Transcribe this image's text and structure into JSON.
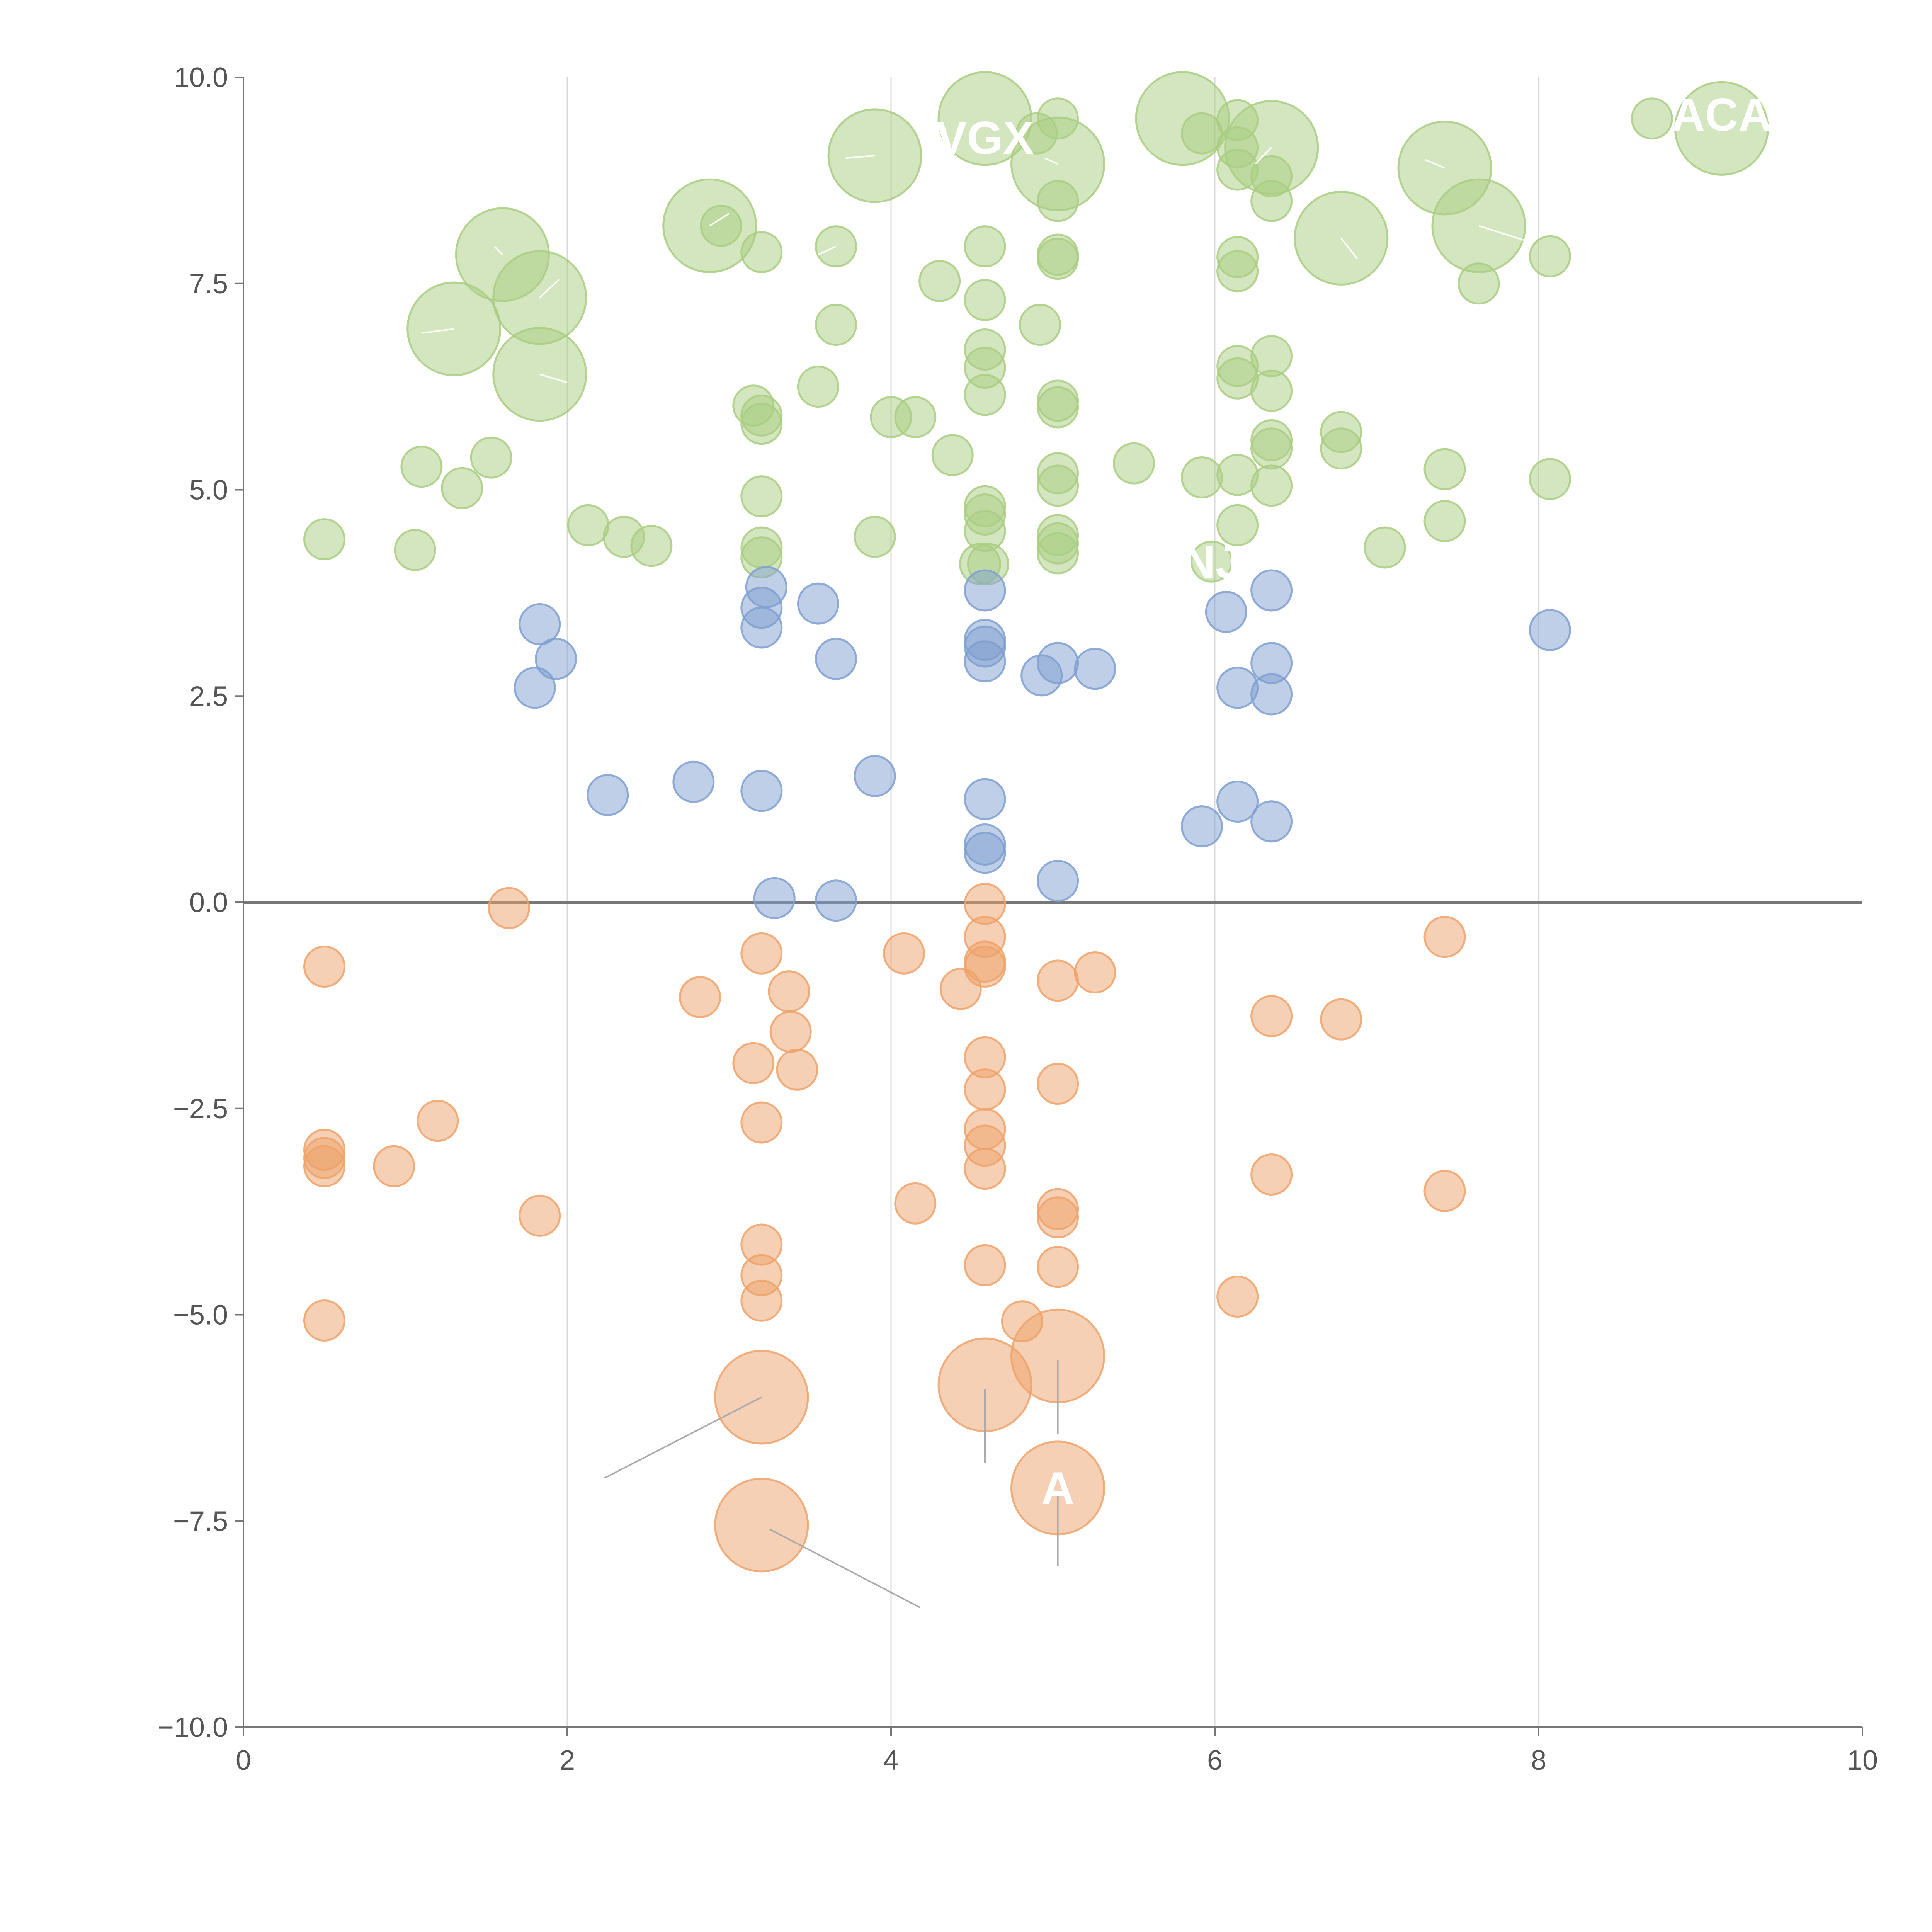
{
  "colors": {
    "positive_high": "#a9cd81",
    "positive_low": "#7f9fd0",
    "negative": "#eea26a",
    "axis": "#777777",
    "grid": "#d8d8d8",
    "leader_dark": "#aaaaaa",
    "leader_light": "#ffffff"
  },
  "chart_data": {
    "type": "scatter",
    "title": "",
    "xlabel": "",
    "ylabel": "",
    "xlim": [
      0,
      10
    ],
    "ylim": [
      -10,
      10
    ],
    "x_ticks": [
      "0",
      "2",
      "4",
      "6",
      "8",
      "10"
    ],
    "y_ticks": [
      "−10.0",
      "−7.5",
      "−5.0",
      "−2.5",
      "0.0",
      "2.5",
      "5.0",
      "7.5",
      "10.0"
    ],
    "x_tick_values": [
      0,
      2,
      4,
      6,
      8,
      10
    ],
    "y_tick_values": [
      -10,
      -7.5,
      -5,
      -2.5,
      0,
      2.5,
      5,
      7.5,
      10
    ],
    "vertical_grid": [
      2,
      4,
      6,
      8
    ],
    "zero_line": 0,
    "series": [
      {
        "name": "high",
        "color_key": "positive_high",
        "points": [
          [
            0.5,
            4.4,
            1
          ],
          [
            1.06,
            4.27,
            1
          ],
          [
            1.1,
            5.28,
            1
          ],
          [
            1.35,
            5.02,
            1
          ],
          [
            1.53,
            5.39,
            1
          ],
          [
            1.3,
            6.95,
            2.5
          ],
          [
            1.6,
            7.85,
            2.5
          ],
          [
            1.83,
            7.33,
            2.5
          ],
          [
            1.83,
            6.4,
            2.5
          ],
          [
            2.13,
            4.57,
            1
          ],
          [
            2.35,
            4.43,
            1
          ],
          [
            2.52,
            4.32,
            1
          ],
          [
            2.88,
            8.2,
            2.5
          ],
          [
            2.95,
            8.2,
            1
          ],
          [
            3.15,
            6.02,
            1
          ],
          [
            3.2,
            5.8,
            1
          ],
          [
            3.2,
            5.9,
            1
          ],
          [
            3.2,
            4.92,
            1
          ],
          [
            3.2,
            4.3,
            1
          ],
          [
            3.2,
            4.18,
            1
          ],
          [
            3.2,
            7.88,
            1
          ],
          [
            3.55,
            6.25,
            1
          ],
          [
            3.66,
            7.0,
            1
          ],
          [
            3.66,
            7.95,
            1
          ],
          [
            3.9,
            9.05,
            2.5
          ],
          [
            3.9,
            4.43,
            1
          ],
          [
            4.0,
            5.88,
            1
          ],
          [
            4.15,
            5.88,
            1
          ],
          [
            4.3,
            7.53,
            1
          ],
          [
            4.38,
            5.42,
            1
          ],
          [
            4.58,
            9.5,
            2.5
          ],
          [
            4.58,
            7.95,
            1
          ],
          [
            4.58,
            7.3,
            1
          ],
          [
            4.58,
            6.7,
            1
          ],
          [
            4.58,
            6.48,
            1
          ],
          [
            4.58,
            6.15,
            1
          ],
          [
            4.58,
            4.8,
            1
          ],
          [
            4.58,
            4.7,
            1
          ],
          [
            4.58,
            4.5,
            1
          ],
          [
            4.55,
            4.1,
            1
          ],
          [
            4.6,
            4.1,
            1
          ],
          [
            4.9,
            9.32,
            1
          ],
          [
            4.92,
            7.0,
            1
          ],
          [
            5.03,
            9.5,
            1
          ],
          [
            5.03,
            8.95,
            2.5
          ],
          [
            5.03,
            8.5,
            1
          ],
          [
            5.03,
            7.85,
            1
          ],
          [
            5.03,
            7.8,
            1
          ],
          [
            5.03,
            6.0,
            1
          ],
          [
            5.03,
            6.08,
            1
          ],
          [
            5.03,
            5.2,
            1
          ],
          [
            5.03,
            5.05,
            1
          ],
          [
            5.03,
            4.45,
            1
          ],
          [
            5.03,
            4.35,
            1
          ],
          [
            5.03,
            4.23,
            1
          ],
          [
            5.5,
            5.32,
            1
          ],
          [
            5.8,
            9.5,
            2.5
          ],
          [
            5.92,
            9.32,
            1
          ],
          [
            5.92,
            5.15,
            1
          ],
          [
            5.98,
            4.13,
            1
          ],
          [
            6.14,
            9.48,
            1
          ],
          [
            6.14,
            9.15,
            1
          ],
          [
            6.14,
            8.88,
            1
          ],
          [
            6.14,
            7.82,
            1
          ],
          [
            6.14,
            7.65,
            1
          ],
          [
            6.14,
            6.5,
            1
          ],
          [
            6.14,
            6.35,
            1
          ],
          [
            6.14,
            5.18,
            1
          ],
          [
            6.14,
            4.57,
            1
          ],
          [
            6.35,
            9.15,
            2.5
          ],
          [
            6.35,
            8.8,
            1
          ],
          [
            6.35,
            8.5,
            1
          ],
          [
            6.35,
            6.62,
            1
          ],
          [
            6.35,
            6.2,
            1
          ],
          [
            6.35,
            5.6,
            1
          ],
          [
            6.35,
            5.5,
            1
          ],
          [
            6.35,
            5.05,
            1
          ],
          [
            6.78,
            8.05,
            2.5
          ],
          [
            6.78,
            5.7,
            1
          ],
          [
            6.78,
            5.5,
            1
          ],
          [
            7.05,
            4.3,
            1
          ],
          [
            7.42,
            8.9,
            2.5
          ],
          [
            7.42,
            5.25,
            1
          ],
          [
            7.42,
            4.62,
            1
          ],
          [
            7.63,
            8.2,
            2.5
          ],
          [
            7.63,
            7.5,
            1
          ],
          [
            8.07,
            7.83,
            1
          ],
          [
            8.07,
            5.13,
            1
          ],
          [
            8.7,
            9.5,
            1
          ],
          [
            9.13,
            9.38,
            2.5
          ]
        ]
      },
      {
        "name": "low",
        "color_key": "positive_low",
        "points": [
          [
            1.83,
            3.37,
            1
          ],
          [
            1.8,
            2.6,
            1
          ],
          [
            1.93,
            2.95,
            1
          ],
          [
            2.25,
            1.3,
            1
          ],
          [
            2.78,
            1.46,
            1
          ],
          [
            3.2,
            3.57,
            1
          ],
          [
            3.2,
            3.33,
            1
          ],
          [
            3.23,
            3.82,
            1
          ],
          [
            3.2,
            1.35,
            1
          ],
          [
            3.28,
            0.05,
            1
          ],
          [
            3.55,
            3.62,
            1
          ],
          [
            3.66,
            2.95,
            1
          ],
          [
            3.66,
            0.02,
            1
          ],
          [
            3.9,
            1.53,
            1
          ],
          [
            4.58,
            3.78,
            1
          ],
          [
            4.58,
            3.18,
            1
          ],
          [
            4.58,
            3.1,
            1
          ],
          [
            4.58,
            2.92,
            1
          ],
          [
            4.58,
            1.25,
            1
          ],
          [
            4.58,
            0.7,
            1
          ],
          [
            4.58,
            0.6,
            1
          ],
          [
            4.93,
            2.75,
            1
          ],
          [
            5.03,
            2.9,
            1
          ],
          [
            5.03,
            0.26,
            1
          ],
          [
            5.26,
            2.83,
            1
          ],
          [
            5.92,
            0.92,
            1
          ],
          [
            6.07,
            3.52,
            1
          ],
          [
            6.14,
            2.6,
            1
          ],
          [
            6.14,
            1.22,
            1
          ],
          [
            6.35,
            3.78,
            1
          ],
          [
            6.35,
            2.9,
            1
          ],
          [
            6.35,
            2.52,
            1
          ],
          [
            6.35,
            0.98,
            1
          ],
          [
            8.07,
            3.3,
            1
          ]
        ]
      },
      {
        "name": "negative",
        "color_key": "negative",
        "points": [
          [
            0.5,
            -0.78,
            1
          ],
          [
            0.5,
            -3.0,
            1
          ],
          [
            0.5,
            -3.1,
            1
          ],
          [
            0.5,
            -3.2,
            1
          ],
          [
            0.5,
            -5.07,
            1
          ],
          [
            0.93,
            -3.2,
            1
          ],
          [
            1.2,
            -2.65,
            1
          ],
          [
            1.64,
            -0.07,
            1
          ],
          [
            1.83,
            -3.8,
            1
          ],
          [
            2.82,
            -1.15,
            1
          ],
          [
            3.15,
            -1.95,
            1
          ],
          [
            3.2,
            -0.62,
            1
          ],
          [
            3.2,
            -2.67,
            1
          ],
          [
            3.2,
            -4.15,
            1
          ],
          [
            3.2,
            -4.52,
            1
          ],
          [
            3.2,
            -4.83,
            1
          ],
          [
            3.2,
            -6.0,
            2.5
          ],
          [
            3.2,
            -7.55,
            2.5
          ],
          [
            3.37,
            -1.08,
            1
          ],
          [
            3.38,
            -1.57,
            1
          ],
          [
            3.42,
            -2.03,
            1
          ],
          [
            4.08,
            -0.62,
            1
          ],
          [
            4.15,
            -3.65,
            1
          ],
          [
            4.43,
            -1.05,
            1
          ],
          [
            4.58,
            -0.02,
            1
          ],
          [
            4.58,
            -0.42,
            1
          ],
          [
            4.58,
            -0.72,
            1
          ],
          [
            4.58,
            -0.78,
            1
          ],
          [
            4.58,
            -1.88,
            1
          ],
          [
            4.58,
            -2.27,
            1
          ],
          [
            4.58,
            -2.75,
            1
          ],
          [
            4.58,
            -2.95,
            1
          ],
          [
            4.58,
            -3.23,
            1
          ],
          [
            4.58,
            -4.4,
            1
          ],
          [
            4.58,
            -5.85,
            2.5
          ],
          [
            4.81,
            -5.08,
            1
          ],
          [
            5.03,
            -0.95,
            1
          ],
          [
            5.03,
            -2.2,
            1
          ],
          [
            5.03,
            -3.72,
            1
          ],
          [
            5.03,
            -3.82,
            1
          ],
          [
            5.03,
            -4.42,
            1
          ],
          [
            5.03,
            -5.5,
            2.5
          ],
          [
            5.03,
            -7.1,
            2.5
          ],
          [
            5.26,
            -0.85,
            1
          ],
          [
            6.14,
            -4.78,
            1
          ],
          [
            6.35,
            -1.38,
            1
          ],
          [
            6.35,
            -3.3,
            1
          ],
          [
            6.78,
            -1.42,
            1
          ],
          [
            7.42,
            -0.42,
            1
          ],
          [
            7.42,
            -3.5,
            1
          ]
        ]
      }
    ],
    "leader_lines": [
      {
        "color_key": "leader_dark",
        "from": [
          3.2,
          -6.0
        ],
        "to": [
          2.23,
          -6.98
        ]
      },
      {
        "color_key": "leader_dark",
        "from": [
          3.25,
          -7.6
        ],
        "to": [
          4.18,
          -8.55
        ]
      },
      {
        "color_key": "leader_dark",
        "from": [
          4.58,
          -5.9
        ],
        "to": [
          4.58,
          -6.8
        ]
      },
      {
        "color_key": "leader_dark",
        "from": [
          5.03,
          -5.55
        ],
        "to": [
          5.03,
          -6.45
        ]
      },
      {
        "color_key": "leader_dark",
        "from": [
          5.03,
          -7.15
        ],
        "to": [
          5.03,
          -8.05
        ]
      },
      {
        "color_key": "leader_light",
        "from": [
          1.3,
          6.95
        ],
        "to": [
          1.1,
          6.9
        ]
      },
      {
        "color_key": "leader_light",
        "from": [
          1.6,
          7.85
        ],
        "to": [
          1.55,
          7.95
        ]
      },
      {
        "color_key": "leader_light",
        "from": [
          1.83,
          7.33
        ],
        "to": [
          1.95,
          7.55
        ]
      },
      {
        "color_key": "leader_light",
        "from": [
          1.83,
          6.4
        ],
        "to": [
          2.0,
          6.3
        ]
      },
      {
        "color_key": "leader_light",
        "from": [
          2.88,
          8.2
        ],
        "to": [
          3.0,
          8.35
        ]
      },
      {
        "color_key": "leader_light",
        "from": [
          3.9,
          9.05
        ],
        "to": [
          3.72,
          9.02
        ]
      },
      {
        "color_key": "leader_light",
        "from": [
          3.66,
          7.95
        ],
        "to": [
          3.55,
          7.85
        ]
      },
      {
        "color_key": "leader_light",
        "from": [
          5.03,
          8.95
        ],
        "to": [
          4.95,
          9.02
        ]
      },
      {
        "color_key": "leader_light",
        "from": [
          6.35,
          9.15
        ],
        "to": [
          6.25,
          8.95
        ]
      },
      {
        "color_key": "leader_light",
        "from": [
          6.78,
          8.05
        ],
        "to": [
          6.88,
          7.8
        ]
      },
      {
        "color_key": "leader_light",
        "from": [
          7.42,
          8.9
        ],
        "to": [
          7.3,
          9.0
        ]
      },
      {
        "color_key": "leader_light",
        "from": [
          7.63,
          8.2
        ],
        "to": [
          7.95,
          8.0
        ]
      }
    ],
    "annotations": [
      {
        "text": "VGX",
        "x": 4.58,
        "y": 9.27
      },
      {
        "text": "ACA",
        "x": 9.13,
        "y": 9.55
      },
      {
        "text": "NJ",
        "x": 5.98,
        "y": 4.13
      },
      {
        "text": "A",
        "x": 5.03,
        "y": -7.1
      }
    ]
  }
}
